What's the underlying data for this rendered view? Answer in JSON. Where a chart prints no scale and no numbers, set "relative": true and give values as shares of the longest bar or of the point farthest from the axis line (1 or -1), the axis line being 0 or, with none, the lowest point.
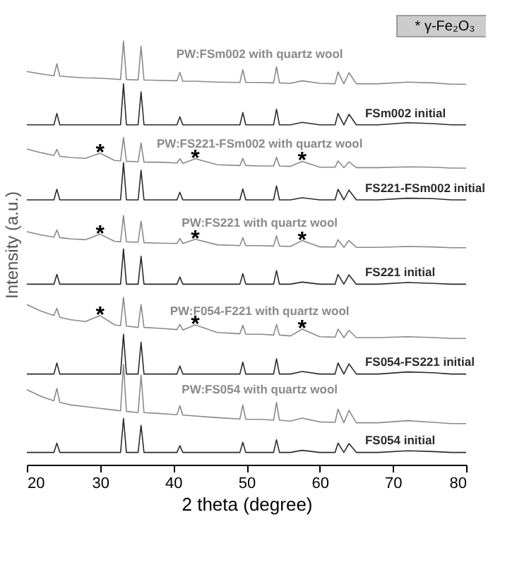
{
  "chart_data": {
    "type": "line",
    "relative": true,
    "xlabel": "2 theta (degree)",
    "ylabel": "Intensity (a.u.)",
    "xlim": [
      20,
      80
    ],
    "xticks": [
      20,
      30,
      40,
      50,
      60,
      70,
      80
    ],
    "grid": false,
    "legend": false,
    "x": [
      20,
      22,
      23.7,
      24.1,
      24.5,
      26,
      28,
      30,
      32,
      32.8,
      33.2,
      33.6,
      35.2,
      35.6,
      36,
      38,
      40.5,
      40.9,
      41.3,
      43,
      46,
      49.1,
      49.5,
      49.9,
      52,
      53.7,
      54.1,
      54.5,
      56,
      57.6,
      60,
      62.1,
      62.5,
      63.3,
      64,
      65,
      68,
      72,
      75.5,
      78,
      80
    ],
    "series": [
      {
        "name": "PW:FSm002 with quartz wool",
        "color": "#8a8a8a",
        "values": [
          0.928,
          0.922,
          0.918,
          0.946,
          0.917,
          0.915,
          0.913,
          0.912,
          0.91,
          0.909,
          1.0,
          0.909,
          0.908,
          0.988,
          0.908,
          0.907,
          0.906,
          0.926,
          0.905,
          0.905,
          0.903,
          0.902,
          0.932,
          0.902,
          0.902,
          0.901,
          0.939,
          0.901,
          0.9,
          0.906,
          0.9,
          0.899,
          0.927,
          0.899,
          0.925,
          0.899,
          0.899,
          0.903,
          0.901,
          0.898,
          0.898
        ]
      },
      {
        "name": "FSm002 initial",
        "color": "#2b2b2b",
        "values": [
          0.802,
          0.802,
          0.802,
          0.829,
          0.802,
          0.802,
          0.802,
          0.802,
          0.802,
          0.802,
          0.899,
          0.802,
          0.802,
          0.88,
          0.802,
          0.802,
          0.802,
          0.821,
          0.802,
          0.802,
          0.802,
          0.802,
          0.831,
          0.802,
          0.802,
          0.802,
          0.839,
          0.802,
          0.802,
          0.808,
          0.802,
          0.802,
          0.829,
          0.802,
          0.827,
          0.802,
          0.802,
          0.807,
          0.805,
          0.802,
          0.802
        ]
      },
      {
        "name": "PW:FS221-FSm002 with quartz wool",
        "color": "#8a8a8a",
        "values": [
          0.745,
          0.736,
          0.73,
          0.744,
          0.728,
          0.725,
          0.723,
          0.735,
          0.718,
          0.717,
          0.772,
          0.716,
          0.715,
          0.759,
          0.714,
          0.714,
          0.712,
          0.722,
          0.711,
          0.722,
          0.708,
          0.706,
          0.723,
          0.706,
          0.705,
          0.705,
          0.726,
          0.705,
          0.704,
          0.716,
          0.702,
          0.702,
          0.717,
          0.701,
          0.715,
          0.701,
          0.701,
          0.703,
          0.702,
          0.7,
          0.7
        ]
      },
      {
        "name": "FS221-FSm002 initial",
        "color": "#2b2b2b",
        "values": [
          0.625,
          0.625,
          0.625,
          0.65,
          0.625,
          0.625,
          0.625,
          0.625,
          0.625,
          0.625,
          0.713,
          0.625,
          0.625,
          0.695,
          0.625,
          0.625,
          0.625,
          0.643,
          0.625,
          0.625,
          0.625,
          0.625,
          0.651,
          0.625,
          0.625,
          0.625,
          0.658,
          0.625,
          0.625,
          0.63,
          0.625,
          0.625,
          0.65,
          0.625,
          0.648,
          0.625,
          0.625,
          0.629,
          0.628,
          0.625,
          0.625
        ]
      },
      {
        "name": "PW:FS221 with quartz wool",
        "color": "#8a8a8a",
        "values": [
          0.55,
          0.542,
          0.537,
          0.554,
          0.536,
          0.533,
          0.531,
          0.544,
          0.527,
          0.526,
          0.588,
          0.526,
          0.525,
          0.575,
          0.524,
          0.523,
          0.522,
          0.534,
          0.522,
          0.532,
          0.519,
          0.517,
          0.536,
          0.517,
          0.517,
          0.516,
          0.54,
          0.516,
          0.515,
          0.529,
          0.514,
          0.514,
          0.531,
          0.513,
          0.529,
          0.513,
          0.513,
          0.515,
          0.514,
          0.512,
          0.512
        ]
      },
      {
        "name": "FS221 initial",
        "color": "#2b2b2b",
        "values": [
          0.426,
          0.426,
          0.426,
          0.449,
          0.426,
          0.426,
          0.426,
          0.426,
          0.426,
          0.426,
          0.509,
          0.426,
          0.426,
          0.492,
          0.426,
          0.426,
          0.426,
          0.443,
          0.426,
          0.426,
          0.426,
          0.426,
          0.451,
          0.426,
          0.426,
          0.426,
          0.458,
          0.426,
          0.426,
          0.431,
          0.426,
          0.426,
          0.449,
          0.426,
          0.448,
          0.426,
          0.426,
          0.43,
          0.428,
          0.426,
          0.426
        ]
      },
      {
        "name": "PW:F054-F221 with quartz wool",
        "color": "#8a8a8a",
        "values": [
          0.378,
          0.362,
          0.352,
          0.369,
          0.348,
          0.342,
          0.338,
          0.352,
          0.33,
          0.328,
          0.395,
          0.327,
          0.324,
          0.378,
          0.324,
          0.322,
          0.319,
          0.331,
          0.318,
          0.33,
          0.312,
          0.309,
          0.329,
          0.308,
          0.308,
          0.306,
          0.331,
          0.306,
          0.304,
          0.32,
          0.302,
          0.301,
          0.32,
          0.3,
          0.317,
          0.3,
          0.3,
          0.302,
          0.3,
          0.298,
          0.298
        ]
      },
      {
        "name": "FS054-FS221 initial",
        "color": "#2b2b2b",
        "values": [
          0.214,
          0.214,
          0.214,
          0.24,
          0.214,
          0.214,
          0.214,
          0.214,
          0.214,
          0.214,
          0.308,
          0.214,
          0.214,
          0.289,
          0.214,
          0.214,
          0.214,
          0.233,
          0.214,
          0.214,
          0.214,
          0.214,
          0.242,
          0.214,
          0.214,
          0.214,
          0.25,
          0.214,
          0.214,
          0.22,
          0.214,
          0.214,
          0.24,
          0.214,
          0.238,
          0.214,
          0.214,
          0.219,
          0.217,
          0.214,
          0.214
        ]
      },
      {
        "name": "PW:FS054 with quartz wool",
        "color": "#8a8a8a",
        "values": [
          0.177,
          0.161,
          0.151,
          0.18,
          0.147,
          0.141,
          0.137,
          0.133,
          0.129,
          0.127,
          0.237,
          0.126,
          0.123,
          0.211,
          0.123,
          0.121,
          0.118,
          0.139,
          0.117,
          0.115,
          0.111,
          0.108,
          0.141,
          0.107,
          0.107,
          0.105,
          0.147,
          0.105,
          0.103,
          0.11,
          0.101,
          0.1,
          0.131,
          0.099,
          0.128,
          0.099,
          0.099,
          0.104,
          0.1,
          0.097,
          0.097
        ]
      },
      {
        "name": "FS054 initial",
        "color": "#2b2b2b",
        "values": [
          0.029,
          0.029,
          0.029,
          0.051,
          0.029,
          0.029,
          0.029,
          0.029,
          0.029,
          0.029,
          0.109,
          0.029,
          0.029,
          0.093,
          0.029,
          0.029,
          0.029,
          0.045,
          0.029,
          0.029,
          0.029,
          0.029,
          0.053,
          0.029,
          0.029,
          0.029,
          0.059,
          0.029,
          0.029,
          0.034,
          0.029,
          0.029,
          0.051,
          0.029,
          0.05,
          0.029,
          0.029,
          0.033,
          0.031,
          0.029,
          0.029
        ]
      }
    ],
    "annotations": [
      "* γ-Fe₂O₃",
      {
        "text": "*",
        "x": 30,
        "y": 0.75
      },
      {
        "text": "*",
        "x": 43,
        "y": 0.737
      },
      {
        "text": "*",
        "x": 57.6,
        "y": 0.731
      },
      {
        "text": "*",
        "x": 30,
        "y": 0.559
      },
      {
        "text": "*",
        "x": 43,
        "y": 0.547
      },
      {
        "text": "*",
        "x": 57.6,
        "y": 0.544
      },
      {
        "text": "*",
        "x": 30,
        "y": 0.367
      },
      {
        "text": "*",
        "x": 43,
        "y": 0.345
      },
      {
        "text": "*",
        "x": 57.6,
        "y": 0.335
      }
    ]
  }
}
